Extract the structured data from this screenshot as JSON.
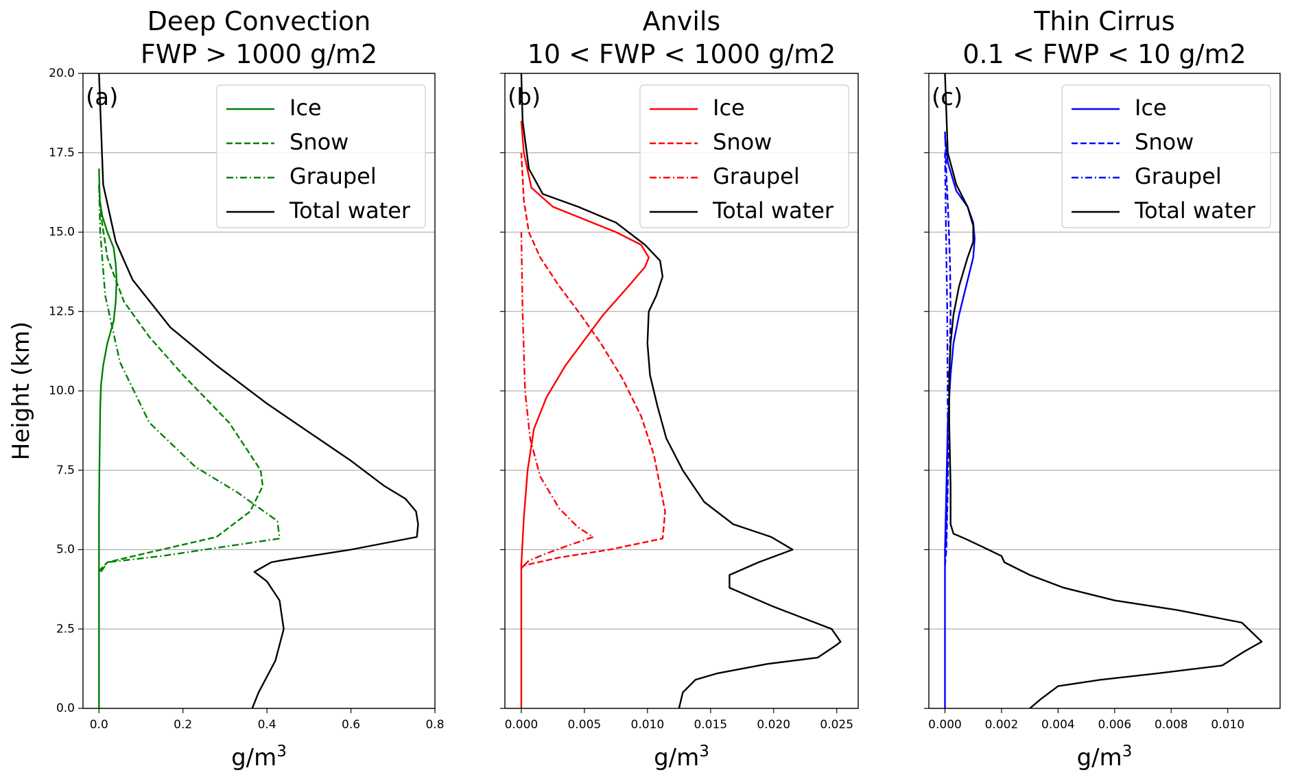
{
  "figure": {
    "ylabel": "Height (km)",
    "xlabel_base": "g/m",
    "xlabel_sup": "3",
    "legend_labels": [
      "Ice",
      "Snow",
      "Graupel",
      "Total water"
    ],
    "line_styles": {
      "ice": "solid",
      "snow": "dashed",
      "graupel": "dashdot",
      "total": "solid"
    }
  },
  "chart_data": [
    {
      "type": "line",
      "panel_label": "(a)",
      "title_line1": "Deep Convection",
      "title_line2": "FWP > 1000 g/m2",
      "color": "#008000",
      "total_color": "#000000",
      "xlim": [
        -0.038,
        0.8
      ],
      "ylim": [
        0,
        20
      ],
      "xticks": [
        0.0,
        0.2,
        0.4,
        0.6,
        0.8
      ],
      "xticklabels": [
        "0.0",
        "0.2",
        "0.4",
        "0.6",
        "0.8"
      ],
      "yticks": [
        0,
        2.5,
        5,
        7.5,
        10,
        12.5,
        15,
        17.5,
        20
      ],
      "yticklabels": [
        "0.0",
        "2.5",
        "5.0",
        "7.5",
        "10.0",
        "12.5",
        "15.0",
        "17.5",
        "20.0"
      ],
      "grid": "horizontal",
      "legend_position": "top-right",
      "series": [
        {
          "key": "ice",
          "name": "Ice",
          "style": "solid",
          "x": [
            0.0,
            0.0,
            0.0,
            0.001,
            0.002,
            0.003,
            0.005,
            0.01,
            0.02,
            0.035,
            0.04,
            0.042,
            0.04,
            0.035,
            0.02,
            0.008,
            0.002,
            0.0
          ],
          "y": [
            0,
            4.3,
            6,
            7.5,
            8.5,
            9.5,
            10.2,
            10.8,
            11.5,
            12.2,
            12.8,
            13.5,
            14.0,
            14.5,
            15.0,
            15.5,
            16.0,
            17.0
          ]
        },
        {
          "key": "snow",
          "name": "Snow",
          "style": "dashed",
          "x": [
            0.0,
            0.005,
            0.02,
            0.1,
            0.28,
            0.36,
            0.39,
            0.385,
            0.36,
            0.31,
            0.2,
            0.12,
            0.06,
            0.02,
            0.005,
            0.0
          ],
          "y": [
            4.3,
            4.4,
            4.6,
            4.85,
            5.4,
            6.2,
            7.0,
            7.5,
            8.0,
            9.0,
            10.5,
            11.7,
            12.8,
            14.2,
            15.5,
            16.5
          ]
        },
        {
          "key": "graupel",
          "name": "Graupel",
          "style": "dashdot",
          "x": [
            0.005,
            0.02,
            0.15,
            0.43,
            0.425,
            0.33,
            0.23,
            0.12,
            0.05,
            0.015,
            0.003,
            0.0
          ],
          "y": [
            4.3,
            4.6,
            4.8,
            5.35,
            5.9,
            6.8,
            7.6,
            9.0,
            10.9,
            13.0,
            15.0,
            16.5
          ]
        },
        {
          "key": "total",
          "name": "Total water",
          "style": "solid",
          "x": [
            0.365,
            0.38,
            0.42,
            0.44,
            0.43,
            0.4,
            0.37,
            0.41,
            0.43,
            0.6,
            0.757,
            0.76,
            0.755,
            0.73,
            0.68,
            0.6,
            0.5,
            0.4,
            0.28,
            0.17,
            0.08,
            0.04,
            0.01,
            0.0
          ],
          "y": [
            0,
            0.5,
            1.5,
            2.5,
            3.4,
            4.0,
            4.3,
            4.6,
            4.65,
            5.0,
            5.4,
            5.8,
            6.2,
            6.6,
            7.0,
            7.8,
            8.7,
            9.6,
            10.8,
            12.0,
            13.5,
            14.7,
            16.5,
            20
          ]
        }
      ]
    },
    {
      "type": "line",
      "panel_label": "(b)",
      "title_line1": "Anvils",
      "title_line2": "10 < FWP < 1000 g/m2",
      "color": "#ff0000",
      "total_color": "#000000",
      "xlim": [
        -0.0013,
        0.0267
      ],
      "ylim": [
        0,
        20
      ],
      "xticks": [
        0.0,
        0.005,
        0.01,
        0.015,
        0.02,
        0.025
      ],
      "xticklabels": [
        "0.000",
        "0.005",
        "0.010",
        "0.015",
        "0.020",
        "0.025"
      ],
      "yticks": [
        0,
        2.5,
        5,
        7.5,
        10,
        12.5,
        15,
        17.5,
        20
      ],
      "yticklabels": [],
      "grid": "horizontal",
      "legend_position": "top-right",
      "series": [
        {
          "key": "ice",
          "name": "Ice",
          "style": "solid",
          "x": [
            0.0,
            0.0,
            0.0002,
            0.0005,
            0.001,
            0.002,
            0.0035,
            0.005,
            0.0065,
            0.0085,
            0.0098,
            0.0101,
            0.0095,
            0.0075,
            0.005,
            0.0025,
            0.0008,
            0.0002,
            0.0
          ],
          "y": [
            0,
            4.5,
            6.0,
            7.5,
            8.8,
            9.8,
            10.8,
            11.6,
            12.4,
            13.3,
            13.9,
            14.2,
            14.6,
            15.0,
            15.4,
            15.8,
            16.4,
            17.5,
            18.5
          ]
        },
        {
          "key": "snow",
          "name": "Snow",
          "style": "dashed",
          "x": [
            0.0,
            0.0002,
            0.003,
            0.007,
            0.0112,
            0.0114,
            0.011,
            0.0105,
            0.0095,
            0.008,
            0.0063,
            0.0047,
            0.003,
            0.0015,
            0.0006,
            0.0002,
            0.0
          ],
          "y": [
            4.4,
            4.5,
            4.75,
            5.0,
            5.35,
            6.2,
            7.0,
            8.0,
            9.2,
            10.4,
            11.5,
            12.4,
            13.3,
            14.2,
            15.0,
            16.0,
            17.5
          ]
        },
        {
          "key": "graupel",
          "name": "Graupel",
          "style": "dashdot",
          "x": [
            0.0002,
            0.0006,
            0.0018,
            0.0035,
            0.0057,
            0.0045,
            0.003,
            0.0015,
            0.0007,
            0.0003,
            0.0001,
            0.0
          ],
          "y": [
            4.5,
            4.65,
            4.85,
            5.1,
            5.4,
            5.7,
            6.3,
            7.3,
            8.5,
            10.0,
            12.5,
            15.0
          ]
        },
        {
          "key": "total",
          "name": "Total water",
          "style": "solid",
          "x": [
            0.0125,
            0.0128,
            0.0138,
            0.0155,
            0.0195,
            0.0235,
            0.025,
            0.0253,
            0.0246,
            0.02,
            0.0165,
            0.0165,
            0.0188,
            0.0215,
            0.0198,
            0.0168,
            0.0145,
            0.0128,
            0.0115,
            0.0108,
            0.0102,
            0.01,
            0.0101,
            0.0107,
            0.0112,
            0.011,
            0.0098,
            0.0075,
            0.0045,
            0.0017,
            0.0006,
            0.0001,
            0.0
          ],
          "y": [
            0,
            0.5,
            0.9,
            1.1,
            1.4,
            1.6,
            2.0,
            2.1,
            2.5,
            3.2,
            3.8,
            4.2,
            4.6,
            5.0,
            5.4,
            5.8,
            6.5,
            7.5,
            8.5,
            9.5,
            10.5,
            11.5,
            12.5,
            13.0,
            13.6,
            14.1,
            14.6,
            15.3,
            15.8,
            16.2,
            17.0,
            18.5,
            20
          ]
        }
      ]
    },
    {
      "type": "line",
      "panel_label": "(c)",
      "title_line1": "Thin Cirrus",
      "title_line2": "0.1 < FWP < 10 g/m2",
      "color": "#0000ff",
      "total_color": "#000000",
      "xlim": [
        -0.00057,
        0.01185
      ],
      "ylim": [
        0,
        20
      ],
      "xticks": [
        0.0,
        0.002,
        0.004,
        0.006,
        0.008,
        0.01
      ],
      "xticklabels": [
        "0.000",
        "0.002",
        "0.004",
        "0.006",
        "0.008",
        "0.010"
      ],
      "yticks": [
        0,
        2.5,
        5,
        7.5,
        10,
        12.5,
        15,
        17.5,
        20
      ],
      "yticklabels": [],
      "grid": "horizontal",
      "legend_position": "top-right",
      "series": [
        {
          "key": "ice",
          "name": "Ice",
          "style": "solid",
          "x": [
            0.0,
            0.0,
            5e-05,
            0.0001,
            0.0002,
            0.0003,
            0.0005,
            0.00075,
            0.001,
            0.00105,
            0.001,
            0.0008,
            0.0004,
            0.0001,
            0.0
          ],
          "y": [
            0,
            5.0,
            7.0,
            9.0,
            10.5,
            11.5,
            12.4,
            13.3,
            14.2,
            14.8,
            15.3,
            15.8,
            16.3,
            17.2,
            18.0
          ]
        },
        {
          "key": "snow",
          "name": "Snow",
          "style": "dashed",
          "x": [
            0.0,
            5e-05,
            0.0001,
            0.00015,
            0.0002,
            0.00018,
            0.00012,
            5e-05,
            0.0
          ],
          "y": [
            4.5,
            5.0,
            7.0,
            10.0,
            12.5,
            14.0,
            15.5,
            16.8,
            18.2
          ]
        },
        {
          "key": "graupel",
          "name": "Graupel",
          "style": "dashdot",
          "x": [
            0.0,
            5e-05,
            0.0001,
            8e-05,
            3e-05,
            0.0
          ],
          "y": [
            4.8,
            5.5,
            9.0,
            12.5,
            15.5,
            17.5
          ]
        },
        {
          "key": "total",
          "name": "Total water",
          "style": "solid",
          "x": [
            0.003,
            0.0034,
            0.004,
            0.0055,
            0.0075,
            0.0098,
            0.0106,
            0.0112,
            0.0105,
            0.0082,
            0.006,
            0.0042,
            0.003,
            0.0021,
            0.002,
            0.0013,
            0.0007,
            0.0003,
            0.0002,
            0.0002,
            0.00015,
            0.00015,
            0.0002,
            0.0003,
            0.0005,
            0.0008,
            0.001,
            0.001,
            0.0008,
            0.0004,
            0.0001,
            0.0
          ],
          "y": [
            0,
            0.3,
            0.7,
            0.9,
            1.1,
            1.35,
            1.8,
            2.1,
            2.7,
            3.1,
            3.4,
            3.8,
            4.2,
            4.6,
            4.8,
            5.1,
            5.35,
            5.5,
            5.8,
            7.0,
            9.0,
            10.5,
            11.5,
            12.4,
            13.3,
            14.2,
            14.7,
            15.2,
            15.8,
            16.5,
            17.5,
            20
          ]
        }
      ]
    }
  ]
}
